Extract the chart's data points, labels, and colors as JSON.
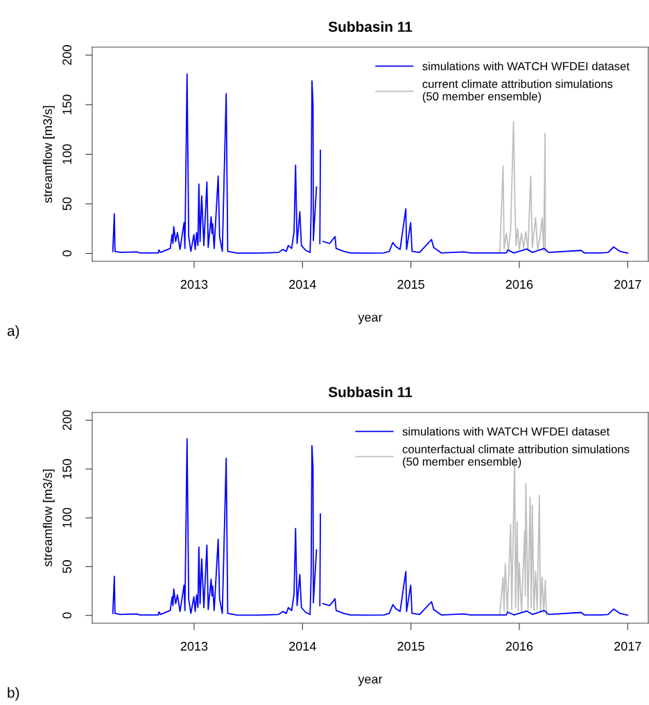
{
  "chart_data": [
    {
      "type": "line",
      "title": "Subbasin 11",
      "xlabel": "year",
      "ylabel": "streamflow [m3/s]",
      "xlim": [
        2012.06,
        2017.19
      ],
      "ylim": [
        -8,
        208
      ],
      "xticks": [
        2013,
        2014,
        2015,
        2016,
        2017
      ],
      "yticks": [
        0,
        50,
        100,
        150,
        200
      ],
      "legend": "top right",
      "annotations": [
        "a)"
      ],
      "series": [
        {
          "name": "simulations with WATCH WFDEI dataset",
          "color": "#0000ff",
          "x": [
            2012.25,
            2012.264,
            2012.27,
            2012.32,
            2012.47,
            2012.5,
            2012.67,
            2012.675,
            2012.69,
            2012.78,
            2012.797,
            2012.805,
            2012.812,
            2012.83,
            2012.846,
            2012.87,
            2012.907,
            2012.915,
            2012.935,
            2012.95,
            2012.97,
            2012.998,
            2013.01,
            2013.023,
            2013.035,
            2013.044,
            2013.055,
            2013.07,
            2013.09,
            2013.118,
            2013.13,
            2013.157,
            2013.165,
            2013.171,
            2013.185,
            2013.222,
            2013.235,
            2013.26,
            2013.296,
            2013.31,
            2013.4,
            2013.6,
            2013.78,
            2013.82,
            2013.85,
            2013.869,
            2013.9,
            2013.922,
            2013.936,
            2013.95,
            2013.975,
            2013.99,
            2014.03,
            2014.07,
            2014.08,
            2014.087,
            2014.097,
            2014.1,
            2014.129,
            2014.15,
            2014.16,
            2014.165,
            2014.18,
            2014.19,
            2014.25,
            2014.3,
            2014.31,
            2014.38,
            2014.44,
            2014.6,
            2014.75,
            2014.8,
            2014.833,
            2014.86,
            2014.9,
            2014.953,
            2014.96,
            2014.998,
            2015.01,
            2015.08,
            2015.19,
            2015.21,
            2015.28,
            2015.49,
            2015.55,
            2015.7,
            2015.88,
            2015.893,
            2015.95,
            2016.07,
            2016.12,
            2016.23,
            2016.27,
            2016.57,
            2016.6,
            2016.75,
            2016.82,
            2016.87,
            2016.93,
            2017.0
          ],
          "values": [
            2,
            40,
            2,
            1,
            1.5,
            0.5,
            0.5,
            3.5,
            1,
            5,
            19,
            10,
            27,
            12,
            21,
            4,
            31,
            5,
            181,
            17,
            2,
            19,
            4,
            21,
            8,
            70,
            12,
            58,
            8,
            72,
            6,
            37,
            20,
            30,
            5,
            78,
            17,
            2,
            161,
            2,
            0.3,
            0.3,
            1,
            4,
            2,
            8,
            5,
            22,
            89,
            10,
            42,
            8,
            3,
            1,
            44,
            174,
            150,
            13,
            67,
            null,
            10,
            104,
            null,
            12,
            10,
            17,
            5,
            2,
            0.5,
            0.3,
            0.5,
            2,
            11,
            7,
            4,
            45,
            4,
            31,
            2,
            1,
            14,
            6,
            0.5,
            1.5,
            0.5,
            0.5,
            0.5,
            3.4,
            0.5,
            4.5,
            1,
            5,
            1,
            3,
            0.5,
            0.5,
            1,
            6.5,
            2,
            0.3
          ]
        },
        {
          "name": "current climate attribution simulations\n(50 member ensemble)",
          "color": "#bebebe",
          "x": [
            2015.82,
            2015.85,
            2015.86,
            2015.88,
            2015.9,
            2015.92,
            2015.947,
            2015.96,
            2015.97,
            2015.985,
            2016.0,
            2016.02,
            2016.04,
            2016.06,
            2016.08,
            2016.105,
            2016.12,
            2016.15,
            2016.17,
            2016.19,
            2016.21,
            2016.225,
            2016.238,
            2016.24
          ],
          "values": [
            1,
            88,
            5,
            20,
            3,
            24,
            133,
            48,
            8,
            25,
            4,
            20,
            5,
            22,
            3,
            78,
            6,
            36,
            4,
            15,
            36,
            3,
            121,
            1
          ]
        }
      ]
    },
    {
      "type": "line",
      "title": "Subbasin 11",
      "xlabel": "year",
      "ylabel": "streamflow [m3/s]",
      "xlim": [
        2012.06,
        2017.19
      ],
      "ylim": [
        -8,
        208
      ],
      "xticks": [
        2013,
        2014,
        2015,
        2016,
        2017
      ],
      "yticks": [
        0,
        50,
        100,
        150,
        200
      ],
      "legend": "top right",
      "annotations": [
        "b)"
      ],
      "series": [
        {
          "name": "simulations with WATCH WFDEI dataset",
          "color": "#0000ff",
          "x": [
            2012.25,
            2012.264,
            2012.27,
            2012.32,
            2012.47,
            2012.5,
            2012.67,
            2012.675,
            2012.69,
            2012.78,
            2012.797,
            2012.805,
            2012.812,
            2012.83,
            2012.846,
            2012.87,
            2012.907,
            2012.915,
            2012.935,
            2012.95,
            2012.97,
            2012.998,
            2013.01,
            2013.023,
            2013.035,
            2013.044,
            2013.055,
            2013.07,
            2013.09,
            2013.118,
            2013.13,
            2013.157,
            2013.165,
            2013.171,
            2013.185,
            2013.222,
            2013.235,
            2013.26,
            2013.296,
            2013.31,
            2013.4,
            2013.6,
            2013.78,
            2013.82,
            2013.85,
            2013.869,
            2013.9,
            2013.922,
            2013.936,
            2013.95,
            2013.975,
            2013.99,
            2014.03,
            2014.07,
            2014.08,
            2014.087,
            2014.097,
            2014.1,
            2014.129,
            2014.15,
            2014.16,
            2014.165,
            2014.18,
            2014.19,
            2014.25,
            2014.3,
            2014.31,
            2014.38,
            2014.44,
            2014.6,
            2014.75,
            2014.8,
            2014.833,
            2014.86,
            2014.9,
            2014.953,
            2014.96,
            2014.998,
            2015.01,
            2015.08,
            2015.19,
            2015.21,
            2015.28,
            2015.49,
            2015.55,
            2015.7,
            2015.88,
            2015.893,
            2015.95,
            2016.07,
            2016.12,
            2016.23,
            2016.27,
            2016.57,
            2016.6,
            2016.75,
            2016.82,
            2016.87,
            2016.93,
            2017.0
          ],
          "values": [
            2,
            40,
            2,
            1,
            1.5,
            0.5,
            0.5,
            3.5,
            1,
            5,
            19,
            10,
            27,
            12,
            21,
            4,
            31,
            5,
            181,
            17,
            2,
            19,
            4,
            21,
            8,
            70,
            12,
            58,
            8,
            72,
            6,
            37,
            20,
            30,
            5,
            78,
            17,
            2,
            161,
            2,
            0.3,
            0.3,
            1,
            4,
            2,
            8,
            5,
            22,
            89,
            10,
            42,
            8,
            3,
            1,
            44,
            174,
            150,
            13,
            67,
            null,
            10,
            104,
            null,
            12,
            10,
            17,
            5,
            2,
            0.5,
            0.3,
            0.5,
            2,
            11,
            7,
            4,
            45,
            4,
            31,
            2,
            1,
            14,
            6,
            0.5,
            1.5,
            0.5,
            0.5,
            0.5,
            3.4,
            0.5,
            4.5,
            1,
            5,
            1,
            3,
            0.5,
            0.5,
            1,
            6.5,
            2,
            0.3
          ]
        },
        {
          "name": "counterfactual climate attribution simulations\n(50 member ensemble)",
          "color": "#bebebe",
          "x": [
            2015.82,
            2015.85,
            2015.86,
            2015.87,
            2015.89,
            2015.92,
            2015.93,
            2015.957,
            2015.965,
            2015.98,
            2015.99,
            2016.0,
            2016.02,
            2016.05,
            2016.055,
            2016.06,
            2016.08,
            2016.1,
            2016.11,
            2016.12,
            2016.135,
            2016.15,
            2016.165,
            2016.185,
            2016.195,
            2016.21,
            2016.225,
            2016.24,
            2016.25
          ],
          "values": [
            1,
            39,
            5,
            53,
            4,
            93,
            6,
            160,
            8,
            96,
            5,
            54,
            4,
            87,
            20,
            135,
            6,
            121,
            8,
            113,
            5,
            45,
            6,
            123,
            4,
            39,
            3,
            36,
            0
          ]
        }
      ]
    }
  ]
}
